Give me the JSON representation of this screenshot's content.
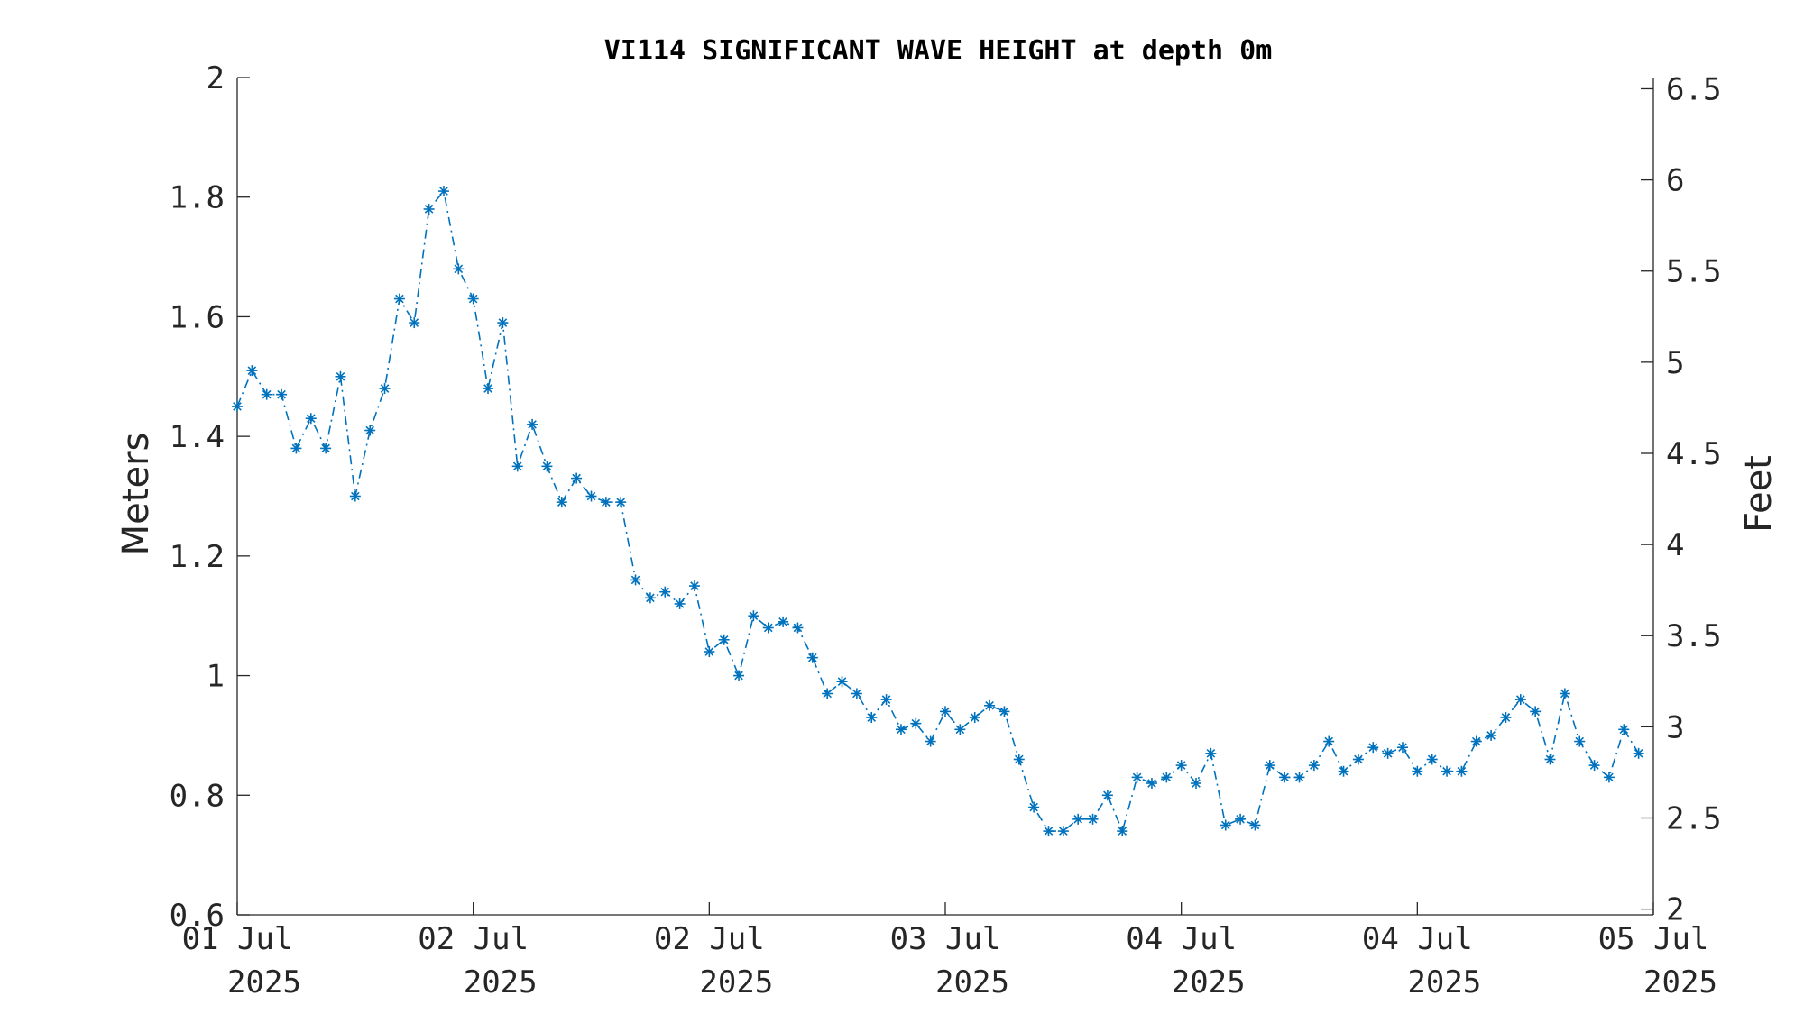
{
  "colors": {
    "series": "#0072BD",
    "axis": "#262626",
    "title": "#000000",
    "background": "#ffffff"
  },
  "chart_data": {
    "type": "line",
    "title": "VI114 SIGNIFICANT WAVE HEIGHT at depth 0m",
    "ylabel": "Meters",
    "y2label": "Feet",
    "ylim": [
      0.6,
      2.0
    ],
    "y2lim": [
      1.9685,
      6.5617
    ],
    "xlim": [
      "2025-07-01 00:00",
      "2025-07-05 00:00"
    ],
    "yticks": [
      "0.6",
      "0.8",
      "1",
      "1.2",
      "1.4",
      "1.6",
      "1.8",
      "2"
    ],
    "y2ticks": [
      "2",
      "2.5",
      "3",
      "3.5",
      "4",
      "4.5",
      "5",
      "5.5",
      "6",
      "6.5"
    ],
    "xticks": [
      {
        "x": "2025-07-01 00:00",
        "line1": "01 Jul",
        "line2": "2025"
      },
      {
        "x": "2025-07-01 16:00",
        "line1": "02 Jul",
        "line2": "2025"
      },
      {
        "x": "2025-07-02 08:00",
        "line1": "02 Jul",
        "line2": "2025"
      },
      {
        "x": "2025-07-03 00:00",
        "line1": "03 Jul",
        "line2": "2025"
      },
      {
        "x": "2025-07-03 16:00",
        "line1": "04 Jul",
        "line2": "2025"
      },
      {
        "x": "2025-07-04 08:00",
        "line1": "04 Jul",
        "line2": "2025"
      },
      {
        "x": "2025-07-05 00:00",
        "line1": "05 Jul",
        "line2": "2025"
      }
    ],
    "grid": false,
    "marker": "asterisk",
    "line_style": "dash-dot",
    "series": [
      {
        "x_start": "2025-07-01 00:00",
        "x_step_hours": 1,
        "values": [
          1.45,
          1.51,
          1.47,
          1.47,
          1.38,
          1.43,
          1.38,
          1.5,
          1.3,
          1.41,
          1.48,
          1.63,
          1.59,
          1.78,
          1.81,
          1.68,
          1.63,
          1.48,
          1.59,
          1.35,
          1.42,
          1.35,
          1.29,
          1.33,
          1.3,
          1.29,
          1.29,
          1.16,
          1.13,
          1.14,
          1.12,
          1.15,
          1.04,
          1.06,
          1.0,
          1.1,
          1.08,
          1.09,
          1.08,
          1.03,
          0.97,
          0.99,
          0.97,
          0.93,
          0.96,
          0.91,
          0.92,
          0.89,
          0.94,
          0.91,
          0.93,
          0.95,
          0.94,
          0.86,
          0.78,
          0.74,
          0.74,
          0.76,
          0.76,
          0.8,
          0.74,
          0.83,
          0.82,
          0.83,
          0.85,
          0.82,
          0.87,
          0.75,
          0.76,
          0.75,
          0.85,
          0.83,
          0.83,
          0.85,
          0.89,
          0.84,
          0.86,
          0.88,
          0.87,
          0.88,
          0.84,
          0.86,
          0.84,
          0.84,
          0.89,
          0.9,
          0.93,
          0.96,
          0.94,
          0.86,
          0.97,
          0.89,
          0.85,
          0.83,
          0.91,
          0.87
        ]
      }
    ]
  }
}
